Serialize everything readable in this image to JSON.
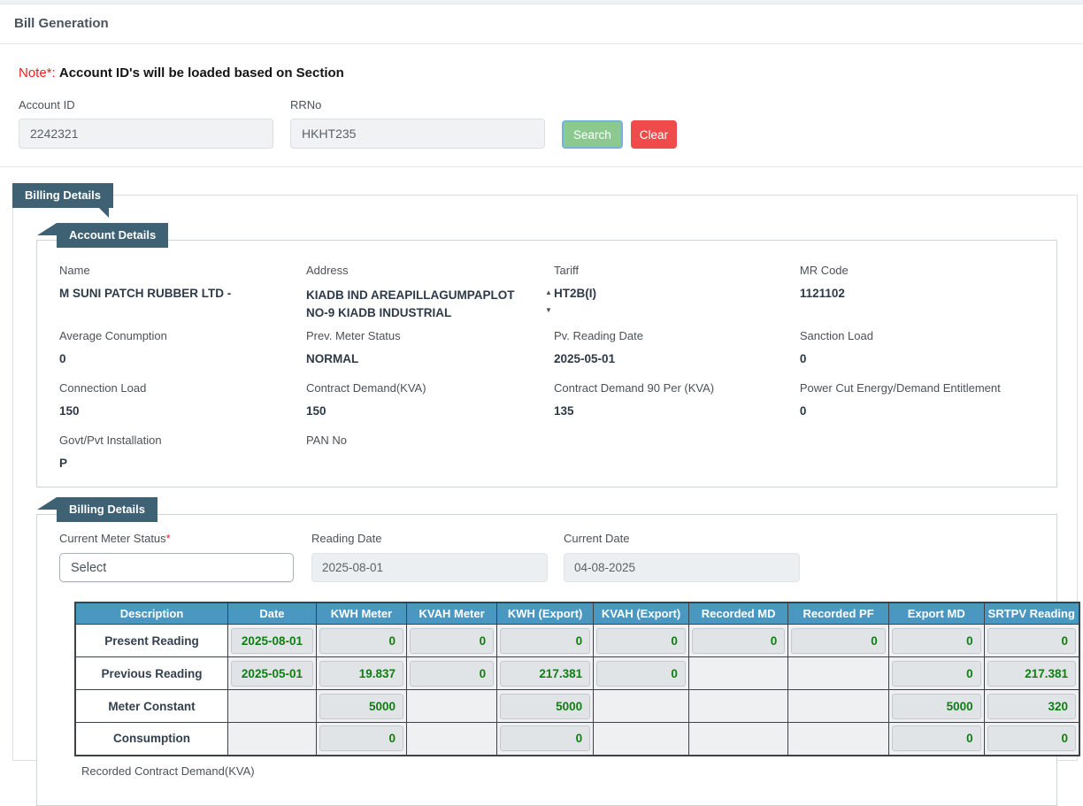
{
  "page": {
    "title": "Bill Generation"
  },
  "note": {
    "prefix": "Note*:",
    "text": "Account ID's will be loaded based on Section"
  },
  "search_form": {
    "account_id": {
      "label": "Account ID",
      "value": "2242321"
    },
    "rrno": {
      "label": "RRNo",
      "value": "HKHT235"
    },
    "search_label": "Search",
    "clear_label": "Clear"
  },
  "billing_panel": {
    "badge": "Billing Details"
  },
  "account_details": {
    "badge": "Account Details",
    "fields": [
      {
        "label": "Name",
        "value": "M SUNI PATCH RUBBER LTD -"
      },
      {
        "label": "Address",
        "value": "KIADB IND AREAPILLAGUMPAPLOT NO-9 KIADB INDUSTRIAL",
        "scroll": true
      },
      {
        "label": "Tariff",
        "value": "HT2B(I)"
      },
      {
        "label": "MR Code",
        "value": "1121102"
      },
      {
        "label": "Average Conumption",
        "value": "0"
      },
      {
        "label": "Prev. Meter Status",
        "value": "NORMAL"
      },
      {
        "label": "Pv. Reading Date",
        "value": "2025-05-01"
      },
      {
        "label": "Sanction Load",
        "value": "0"
      },
      {
        "label": "Connection Load",
        "value": "150"
      },
      {
        "label": "Contract Demand(KVA)",
        "value": "150"
      },
      {
        "label": "Contract Demand 90 Per (KVA)",
        "value": "135"
      },
      {
        "label": "Power Cut Energy/Demand Entitlement",
        "value": "0"
      },
      {
        "label": "Govt/Pvt Installation",
        "value": "P"
      },
      {
        "label": "PAN No",
        "value": ""
      }
    ]
  },
  "billing_details": {
    "badge": "Billing Details",
    "current_meter_status": {
      "label": "Current Meter Status",
      "required": "*",
      "value": "Select"
    },
    "reading_date": {
      "label": "Reading Date",
      "value": "2025-08-01"
    },
    "current_date": {
      "label": "Current Date",
      "value": "04-08-2025"
    },
    "table": {
      "headers": [
        "Description",
        "Date",
        "KWH Meter",
        "KVAH Meter",
        "KWH (Export)",
        "KVAH (Export)",
        "Recorded MD",
        "Recorded PF",
        "Export MD",
        "SRTPV Reading"
      ],
      "col_widths": [
        "15.2%",
        "8.8%",
        "9.0%",
        "9.0%",
        "9.6%",
        "9.5%",
        "9.9%",
        "10.0%",
        "9.5%",
        "9.5%"
      ],
      "rows": [
        {
          "description": "Present Reading",
          "editable": true,
          "cells": [
            {
              "value": "2025-08-01",
              "box": true,
              "date": true
            },
            {
              "value": "0",
              "box": true
            },
            {
              "value": "0",
              "box": true
            },
            {
              "value": "0",
              "box": true
            },
            {
              "value": "0",
              "box": true
            },
            {
              "value": "0",
              "box": true
            },
            {
              "value": "0",
              "box": true
            },
            {
              "value": "0",
              "box": true
            },
            {
              "value": "0",
              "box": true
            }
          ]
        },
        {
          "description": "Previous Reading",
          "editable": false,
          "cells": [
            {
              "value": "2025-05-01",
              "box": true,
              "date": true
            },
            {
              "value": "19.837",
              "box": true
            },
            {
              "value": "0",
              "box": true
            },
            {
              "value": "217.381",
              "box": true
            },
            {
              "value": "0",
              "box": true
            },
            {
              "value": "",
              "box": false
            },
            {
              "value": "",
              "box": false
            },
            {
              "value": "0",
              "box": true
            },
            {
              "value": "217.381",
              "box": true
            }
          ]
        },
        {
          "description": "Meter Constant",
          "editable": false,
          "cells": [
            {
              "value": "",
              "box": false
            },
            {
              "value": "5000",
              "box": true
            },
            {
              "value": "",
              "box": false
            },
            {
              "value": "5000",
              "box": true
            },
            {
              "value": "",
              "box": false
            },
            {
              "value": "",
              "box": false
            },
            {
              "value": "",
              "box": false
            },
            {
              "value": "5000",
              "box": true
            },
            {
              "value": "320",
              "box": true
            }
          ]
        },
        {
          "description": "Consumption",
          "editable": false,
          "cells": [
            {
              "value": "",
              "box": false
            },
            {
              "value": "0",
              "box": true
            },
            {
              "value": "",
              "box": false
            },
            {
              "value": "0",
              "box": true
            },
            {
              "value": "",
              "box": false
            },
            {
              "value": "",
              "box": false
            },
            {
              "value": "",
              "box": false
            },
            {
              "value": "0",
              "box": true
            },
            {
              "value": "0",
              "box": true
            }
          ]
        }
      ]
    },
    "footer_label": "Recorded Contract Demand(KVA)"
  },
  "icons": {
    "scroll_up": "▲",
    "scroll_down": "▼"
  },
  "colors": {
    "badge": "#3e6174",
    "table_header": "#4a97c2",
    "value_green": "#0e7e12",
    "search_green": "#8cc98f",
    "clear_red": "#f04b4b",
    "note_red": "#f21d1d"
  }
}
